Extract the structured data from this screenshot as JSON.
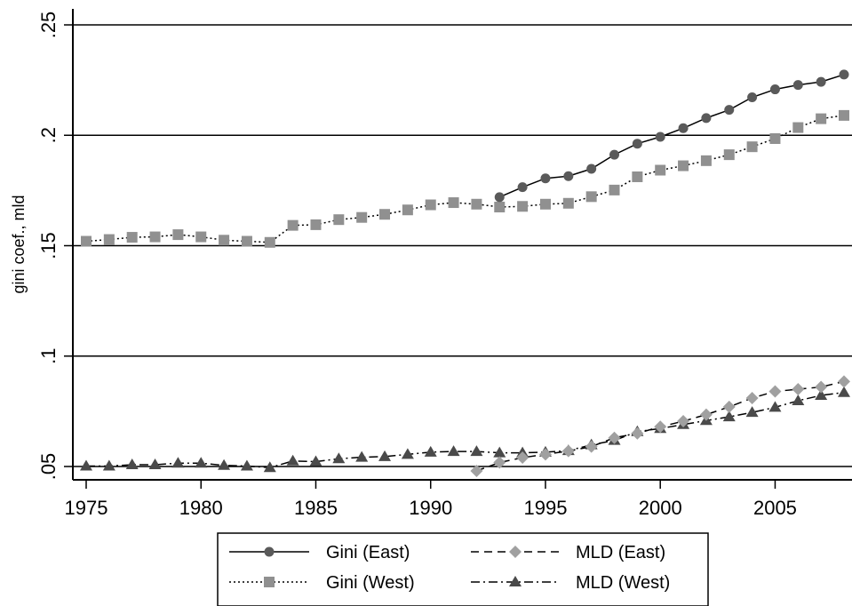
{
  "chart_data": {
    "type": "line",
    "title": "",
    "xlabel": "",
    "ylabel": "gini coef., mld",
    "xlim": [
      1975,
      2008
    ],
    "ylim": [
      0.05,
      0.25
    ],
    "xticks": [
      1975,
      1980,
      1985,
      1990,
      1995,
      2000,
      2005
    ],
    "xtick_labels": [
      "1975",
      "1980",
      "1985",
      "1990",
      "1995",
      "2000",
      "2005"
    ],
    "yticks": [
      0.05,
      0.1,
      0.15,
      0.2,
      0.25
    ],
    "ytick_labels": [
      ".05",
      ".1",
      ".15",
      ".2",
      ".25"
    ],
    "grid": "horizontal",
    "legend_position": "bottom",
    "series": [
      {
        "name": "Gini (East)",
        "line": "solid",
        "marker": "circle",
        "color": "#5a5a5a",
        "points": [
          [
            1993,
            0.172
          ],
          [
            1994,
            0.1765
          ],
          [
            1995,
            0.1805
          ],
          [
            1996,
            0.1815
          ],
          [
            1997,
            0.1848
          ],
          [
            1998,
            0.1912
          ],
          [
            1999,
            0.1962
          ],
          [
            2000,
            0.1993
          ],
          [
            2001,
            0.2032
          ],
          [
            2002,
            0.2078
          ],
          [
            2003,
            0.2115
          ],
          [
            2004,
            0.2172
          ],
          [
            2005,
            0.2208
          ],
          [
            2006,
            0.2228
          ],
          [
            2007,
            0.2242
          ],
          [
            2008,
            0.2275
          ]
        ]
      },
      {
        "name": "Gini (West)",
        "line": "dotted",
        "marker": "square",
        "color": "#909090",
        "points": [
          [
            1975,
            0.152
          ],
          [
            1976,
            0.1528
          ],
          [
            1977,
            0.1538
          ],
          [
            1978,
            0.154
          ],
          [
            1979,
            0.155
          ],
          [
            1980,
            0.154
          ],
          [
            1981,
            0.1525
          ],
          [
            1982,
            0.152
          ],
          [
            1983,
            0.1515
          ],
          [
            1984,
            0.1592
          ],
          [
            1985,
            0.1595
          ],
          [
            1986,
            0.1618
          ],
          [
            1987,
            0.1628
          ],
          [
            1988,
            0.1642
          ],
          [
            1989,
            0.1662
          ],
          [
            1990,
            0.1685
          ],
          [
            1991,
            0.1695
          ],
          [
            1992,
            0.1688
          ],
          [
            1993,
            0.1675
          ],
          [
            1994,
            0.1678
          ],
          [
            1995,
            0.1688
          ],
          [
            1996,
            0.1692
          ],
          [
            1997,
            0.1722
          ],
          [
            1998,
            0.1752
          ],
          [
            1999,
            0.1812
          ],
          [
            2000,
            0.1842
          ],
          [
            2001,
            0.1862
          ],
          [
            2002,
            0.1885
          ],
          [
            2003,
            0.1912
          ],
          [
            2004,
            0.1948
          ],
          [
            2005,
            0.1985
          ],
          [
            2006,
            0.2035
          ],
          [
            2007,
            0.2075
          ],
          [
            2008,
            0.209
          ]
        ]
      },
      {
        "name": "MLD (East)",
        "line": "dashed",
        "marker": "diamond",
        "color": "#a0a0a0",
        "points": [
          [
            1992,
            0.048
          ],
          [
            1993,
            0.0518
          ],
          [
            1994,
            0.054
          ],
          [
            1995,
            0.0555
          ],
          [
            1996,
            0.057
          ],
          [
            1997,
            0.059
          ],
          [
            1998,
            0.063
          ],
          [
            1999,
            0.065
          ],
          [
            2000,
            0.068
          ],
          [
            2001,
            0.0705
          ],
          [
            2002,
            0.0735
          ],
          [
            2003,
            0.077
          ],
          [
            2004,
            0.081
          ],
          [
            2005,
            0.084
          ],
          [
            2006,
            0.085
          ],
          [
            2007,
            0.086
          ],
          [
            2008,
            0.0885
          ]
        ]
      },
      {
        "name": "MLD (West)",
        "line": "dashdot",
        "marker": "triangle",
        "color": "#4a4a4a",
        "points": [
          [
            1975,
            0.0502
          ],
          [
            1976,
            0.0502
          ],
          [
            1977,
            0.0508
          ],
          [
            1978,
            0.0508
          ],
          [
            1979,
            0.0515
          ],
          [
            1980,
            0.0515
          ],
          [
            1981,
            0.0505
          ],
          [
            1982,
            0.0502
          ],
          [
            1983,
            0.0495
          ],
          [
            1984,
            0.0525
          ],
          [
            1985,
            0.0522
          ],
          [
            1986,
            0.0535
          ],
          [
            1987,
            0.0542
          ],
          [
            1988,
            0.0545
          ],
          [
            1989,
            0.0555
          ],
          [
            1990,
            0.0565
          ],
          [
            1991,
            0.0568
          ],
          [
            1992,
            0.0568
          ],
          [
            1993,
            0.0562
          ],
          [
            1994,
            0.0562
          ],
          [
            1995,
            0.0565
          ],
          [
            1996,
            0.0572
          ],
          [
            1997,
            0.0598
          ],
          [
            1998,
            0.0618
          ],
          [
            1999,
            0.0658
          ],
          [
            2000,
            0.0672
          ],
          [
            2001,
            0.069
          ],
          [
            2002,
            0.0708
          ],
          [
            2003,
            0.0725
          ],
          [
            2004,
            0.0745
          ],
          [
            2005,
            0.0768
          ],
          [
            2006,
            0.0798
          ],
          [
            2007,
            0.0822
          ],
          [
            2008,
            0.0835
          ]
        ]
      }
    ]
  }
}
